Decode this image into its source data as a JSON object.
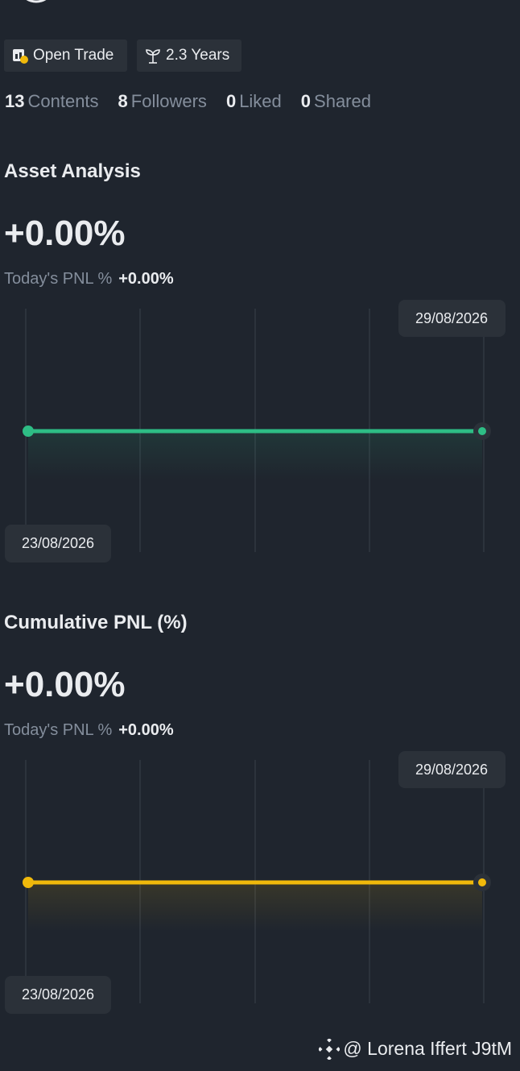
{
  "badges": [
    "Open Trade",
    "2.3 Years"
  ],
  "stats": [
    {
      "value": 13,
      "label": "Contents"
    },
    {
      "value": 8,
      "label": "Followers"
    },
    {
      "value": 0,
      "label": "Liked"
    },
    {
      "value": 0,
      "label": "Shared"
    }
  ],
  "sections": [
    {
      "title": "Asset Analysis",
      "value": "+0.00%",
      "pnl_label": "Today's PNL %",
      "pnl_value": "+0.00%",
      "start_date": "23/08/2026",
      "end_date": "29/08/2026"
    },
    {
      "title": "Cumulative PNL (%)",
      "value": "+0.00%",
      "pnl_label": "Today's PNL %",
      "pnl_value": "+0.00%",
      "start_date": "23/08/2026",
      "end_date": "29/08/2026"
    }
  ],
  "watermark": "@ Lorena Iffert J9tM"
}
